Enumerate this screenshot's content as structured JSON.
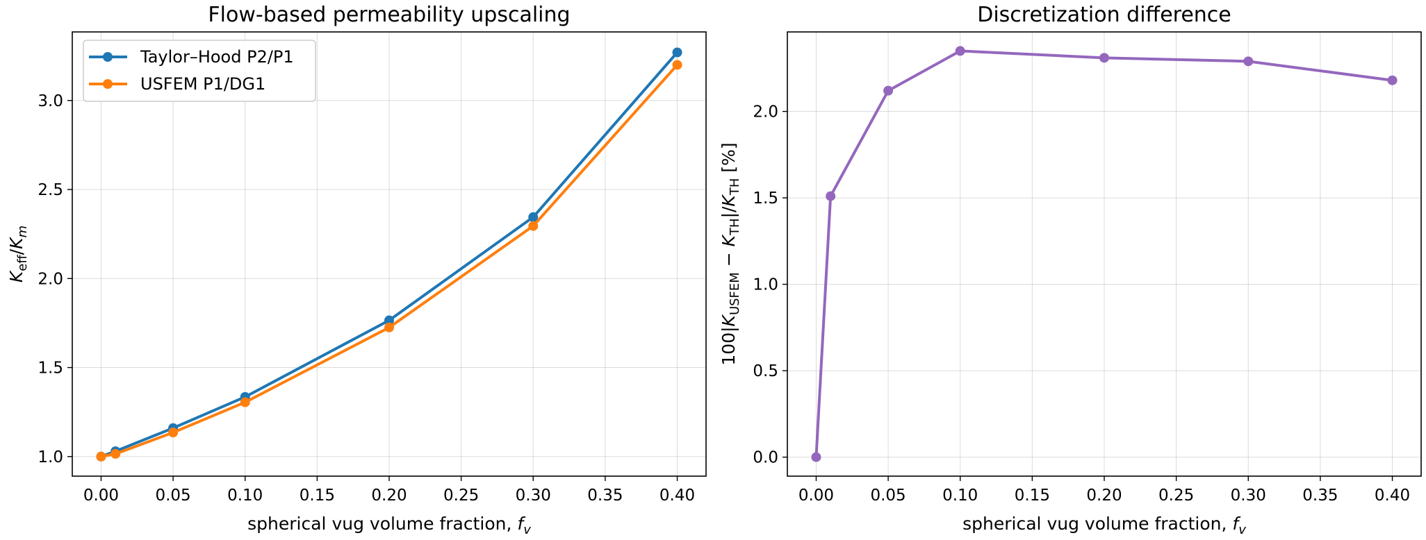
{
  "chart_data": [
    {
      "type": "line",
      "title": "Flow-based permeability upscaling",
      "xlabel": "spherical vug volume fraction, f_v",
      "ylabel": "K_eff/K_m",
      "x": [
        0.0,
        0.01,
        0.05,
        0.1,
        0.2,
        0.3,
        0.4
      ],
      "series": [
        {
          "name": "Taylor–Hood P2/P1",
          "color": "#1f77b4",
          "values": [
            1.0,
            1.03,
            1.16,
            1.335,
            1.765,
            2.345,
            3.27
          ]
        },
        {
          "name": "USFEM P1/DG1",
          "color": "#ff7f0e",
          "values": [
            1.0,
            1.015,
            1.135,
            1.305,
            1.725,
            2.295,
            3.2
          ]
        }
      ],
      "xlim": [
        -0.02,
        0.42
      ],
      "ylim": [
        0.89,
        3.385
      ],
      "xticks": [
        0.0,
        0.05,
        0.1,
        0.15,
        0.2,
        0.25,
        0.3,
        0.35,
        0.4
      ],
      "xtick_labels": [
        "0.00",
        "0.05",
        "0.10",
        "0.15",
        "0.20",
        "0.25",
        "0.30",
        "0.35",
        "0.40"
      ],
      "yticks": [
        1.0,
        1.5,
        2.0,
        2.5,
        3.0
      ],
      "ytick_labels": [
        "1.0",
        "1.5",
        "2.0",
        "2.5",
        "3.0"
      ],
      "grid": true,
      "legend": "top-left"
    },
    {
      "type": "line",
      "title": "Discretization difference",
      "xlabel": "spherical vug volume fraction, f_v",
      "ylabel": "100|K_USFEM − K_TH|/K_TH [%]",
      "x": [
        0.0,
        0.01,
        0.05,
        0.1,
        0.2,
        0.3,
        0.4
      ],
      "series": [
        {
          "color": "#9467bd",
          "values": [
            0.0,
            1.51,
            2.12,
            2.35,
            2.31,
            2.29,
            2.18
          ]
        }
      ],
      "xlim": [
        -0.02,
        0.42
      ],
      "ylim": [
        -0.11,
        2.46
      ],
      "xticks": [
        0.0,
        0.05,
        0.1,
        0.15,
        0.2,
        0.25,
        0.3,
        0.35,
        0.4
      ],
      "xtick_labels": [
        "0.00",
        "0.05",
        "0.10",
        "0.15",
        "0.20",
        "0.25",
        "0.30",
        "0.35",
        "0.40"
      ],
      "yticks": [
        0.0,
        0.5,
        1.0,
        1.5,
        2.0
      ],
      "ytick_labels": [
        "0.0",
        "0.5",
        "1.0",
        "1.5",
        "2.0"
      ],
      "grid": true,
      "legend": "none"
    }
  ]
}
